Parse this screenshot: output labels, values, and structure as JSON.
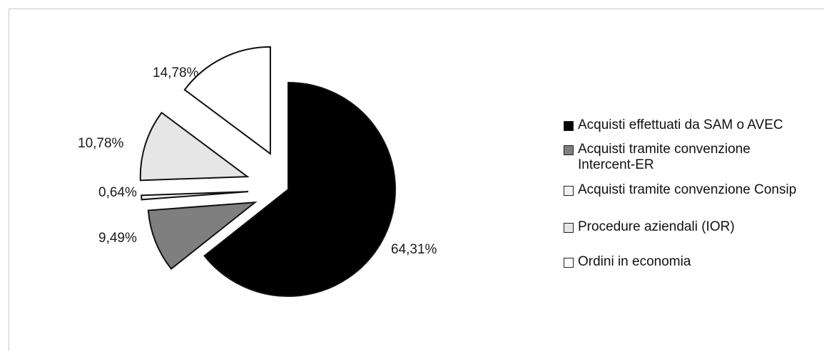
{
  "chart_data": {
    "type": "pie",
    "exploded": true,
    "legend_position": "right",
    "slices": [
      {
        "label": "Acquisti effettuati da SAM o AVEC",
        "value": 64.31,
        "value_label": "64,31%",
        "color": "#000000"
      },
      {
        "label": "Acquisti tramite convenzione Intercent-ER",
        "value": 9.49,
        "value_label": "9,49%",
        "color": "#7f7f7f"
      },
      {
        "label": "Acquisti tramite convenzione Consip",
        "value": 0.64,
        "value_label": "0,64%",
        "color": "#f2f2f2"
      },
      {
        "label": "Procedure aziendali (IOR)",
        "value": 10.78,
        "value_label": "10,78%",
        "color": "#e6e6e6"
      },
      {
        "label": "Ordini in economia",
        "value": 14.78,
        "value_label": "14,78%",
        "color": "#ffffff"
      }
    ],
    "legend": [
      {
        "lines": [
          "Acquisti effettuati da SAM o AVEC"
        ]
      },
      {
        "lines": [
          "Acquisti tramite convenzione",
          "Intercent-ER"
        ]
      },
      {
        "lines": [
          "Acquisti tramite convenzione Consip"
        ]
      },
      {
        "lines": [
          "Procedure aziendali (IOR)"
        ]
      },
      {
        "lines": [
          "Ordini in economia"
        ]
      }
    ]
  }
}
